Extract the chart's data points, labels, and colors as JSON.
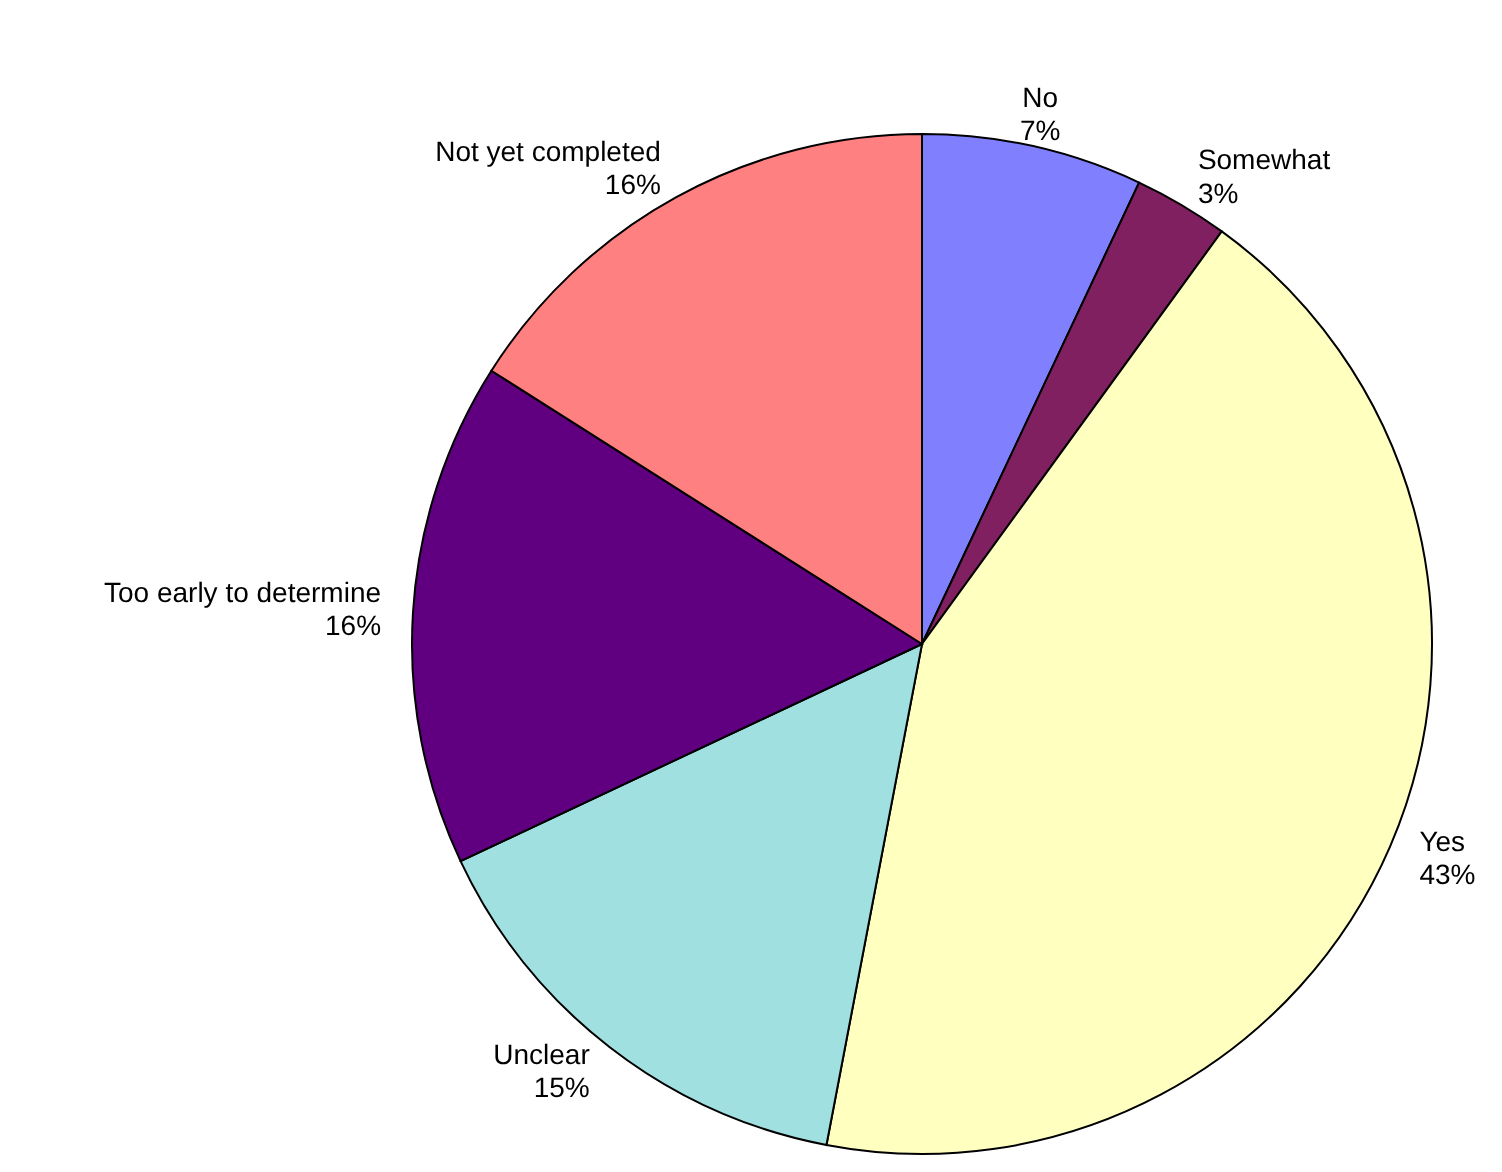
{
  "chart_data": {
    "type": "pie",
    "categories": [
      "No",
      "Somewhat",
      "Yes",
      "Unclear",
      "Too early to determine",
      "Not yet completed"
    ],
    "values": [
      7,
      3,
      43,
      15,
      16,
      16
    ],
    "value_labels": [
      "7%",
      "3%",
      "43%",
      "15%",
      "16%",
      "16%"
    ],
    "colors": [
      "#8080ff",
      "#802060",
      "#ffffc0",
      "#a0e0e0",
      "#600080",
      "#ff8080"
    ],
    "legend": false
  }
}
